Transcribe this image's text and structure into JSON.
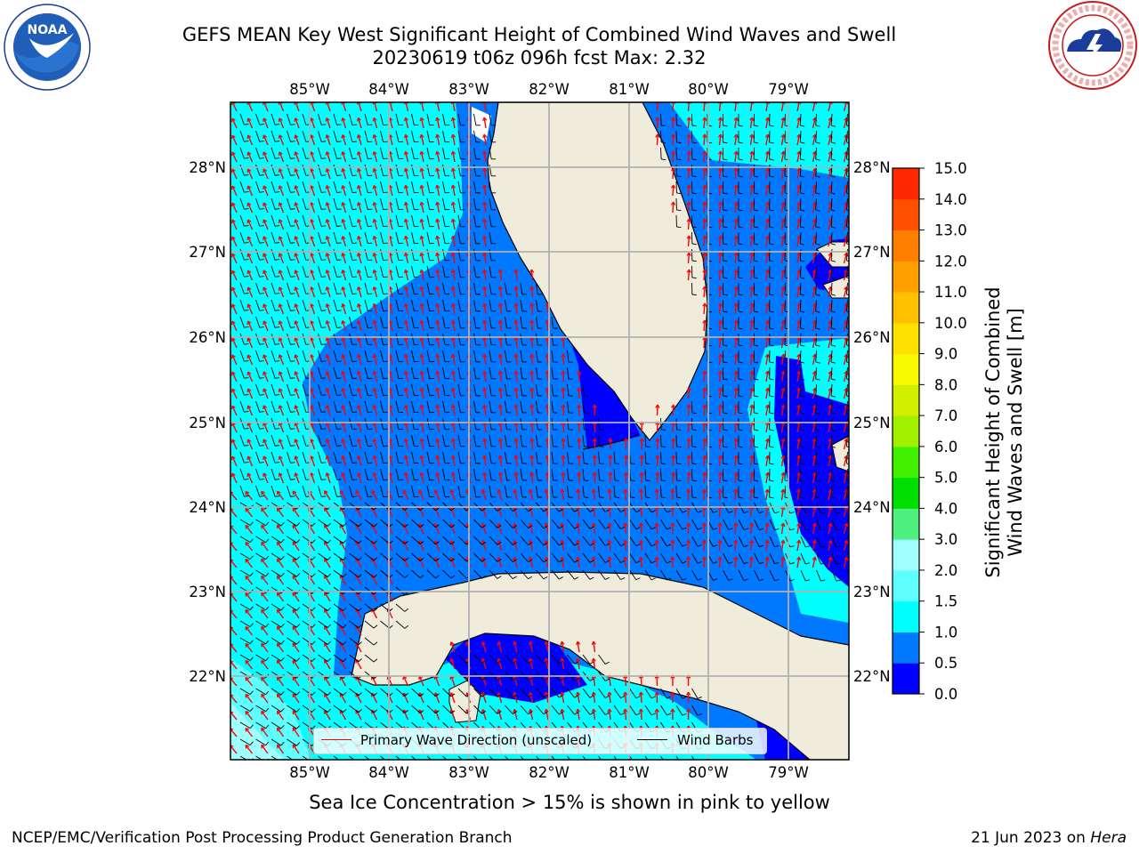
{
  "title": {
    "line1": "GEFS MEAN Key West Significant Height of Combined Wind Waves and Swell",
    "line2": "20230619 t06z 096h fcst   Max: 2.32"
  },
  "logos": {
    "noaa": {
      "text": "NOAA",
      "ring_text": "NATIONAL OCEANIC AND ATMOSPHERIC ADMINISTRATION · U.S. DEPARTMENT OF COMMERCE"
    },
    "nws": {
      "ring_text": "NATIONAL WEATHER SERVICE"
    }
  },
  "map": {
    "lon_labels": [
      "85°W",
      "84°W",
      "83°W",
      "82°W",
      "81°W",
      "80°W",
      "79°W"
    ],
    "lat_labels": [
      "28°N",
      "27°N",
      "26°N",
      "25°N",
      "24°N",
      "23°N",
      "22°N"
    ],
    "colors": {
      "land": "#efecdc",
      "wave_arrow": "#ff0000",
      "wind_barb": "#000000",
      "grid": "#b0b0b0"
    }
  },
  "colorbar": {
    "title_line1": "Significant Height of Combined",
    "title_line2": "Wind Waves and Swell [m]",
    "tick_labels": [
      "0.0",
      "0.5",
      "1.0",
      "1.5",
      "2.0",
      "3.0",
      "4.0",
      "5.0",
      "6.0",
      "7.0",
      "8.0",
      "9.0",
      "10.0",
      "11.0",
      "12.0",
      "13.0",
      "14.0",
      "15.0"
    ],
    "colors": [
      "#0000ff",
      "#0078ff",
      "#00ffff",
      "#5effff",
      "#a0ffff",
      "#50f080",
      "#00e000",
      "#40f000",
      "#a0f000",
      "#d0f000",
      "#f8f800",
      "#ffe000",
      "#ffc000",
      "#ffa000",
      "#ff8000",
      "#ff5000",
      "#ff2800"
    ]
  },
  "legend": {
    "wave_label": "Primary Wave Direction (unscaled)",
    "wind_label": "Wind Barbs"
  },
  "caption": "Sea Ice Concentration > 15% is shown in pink to yellow",
  "footer": {
    "left": "NCEP/EMC/Verification Post Processing Product Generation Branch",
    "right_prefix": "21 Jun 2023 on ",
    "right_machine": "Hera"
  }
}
